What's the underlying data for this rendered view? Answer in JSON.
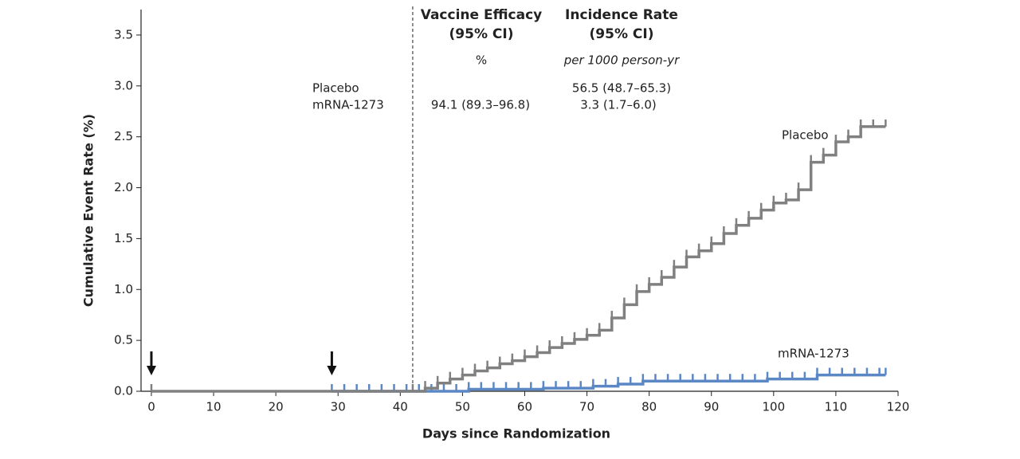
{
  "chart_data": {
    "type": "step",
    "x_label": "Days since Randomization",
    "y_label": "Cumulative Event Rate (%)",
    "xlim": [
      -1.66,
      120
    ],
    "ylim": [
      0,
      3.75
    ],
    "xticks": [
      0,
      10,
      20,
      30,
      40,
      50,
      60,
      70,
      80,
      90,
      100,
      110,
      120
    ],
    "yticks": [
      {
        "value": 0,
        "label": "0.0"
      },
      {
        "value": 0.5,
        "label": "0.5"
      },
      {
        "value": 1,
        "label": "1.0"
      },
      {
        "value": 1.5,
        "label": "1.5"
      },
      {
        "value": 2,
        "label": "2.0"
      },
      {
        "value": 2.5,
        "label": "2.5"
      },
      {
        "value": 3,
        "label": "3.0"
      },
      {
        "value": 3.5,
        "label": "3.5"
      }
    ],
    "reference_line_x": 42,
    "dose_arrows_x": [
      0,
      29
    ],
    "series": [
      {
        "name": "mRNA-1273",
        "color": "#5b87c5",
        "x": [
          29,
          31,
          33,
          35,
          37,
          39,
          41,
          43,
          45,
          47,
          49,
          51,
          53,
          55,
          57,
          59,
          61,
          63,
          65,
          67,
          69,
          71,
          73,
          75,
          77,
          79,
          81,
          83,
          85,
          87,
          89,
          91,
          93,
          95,
          97,
          99,
          101,
          103,
          105,
          107,
          109,
          111,
          113,
          115,
          117,
          118
        ],
        "values": [
          0,
          0,
          0,
          0,
          0,
          0,
          0,
          0,
          0,
          0,
          0,
          0.02,
          0.02,
          0.02,
          0.02,
          0.02,
          0.02,
          0.03,
          0.03,
          0.03,
          0.03,
          0.05,
          0.05,
          0.07,
          0.07,
          0.1,
          0.1,
          0.1,
          0.1,
          0.1,
          0.1,
          0.1,
          0.1,
          0.1,
          0.1,
          0.12,
          0.12,
          0.12,
          0.12,
          0.16,
          0.16,
          0.16,
          0.16,
          0.16,
          0.16,
          0.16
        ]
      },
      {
        "name": "Placebo",
        "color": "#808080",
        "x": [
          0,
          42,
          44,
          46,
          48,
          50,
          52,
          54,
          56,
          58,
          60,
          62,
          64,
          66,
          68,
          70,
          72,
          74,
          76,
          78,
          80,
          82,
          84,
          86,
          88,
          90,
          92,
          94,
          96,
          98,
          100,
          102,
          104,
          106,
          108,
          110,
          112,
          114,
          116,
          118
        ],
        "values": [
          0,
          0,
          0.03,
          0.08,
          0.12,
          0.16,
          0.2,
          0.23,
          0.27,
          0.3,
          0.34,
          0.38,
          0.43,
          0.47,
          0.51,
          0.55,
          0.6,
          0.72,
          0.85,
          0.98,
          1.05,
          1.12,
          1.22,
          1.32,
          1.38,
          1.45,
          1.55,
          1.63,
          1.7,
          1.78,
          1.85,
          1.88,
          1.98,
          2.25,
          2.32,
          2.45,
          2.5,
          2.6,
          2.6,
          2.6
        ]
      }
    ],
    "table": {
      "efficacy_header": [
        "Vaccine Efficacy",
        "(95% CI)"
      ],
      "efficacy_unit": "%",
      "incidence_header": [
        "Incidence Rate",
        "(95% CI)"
      ],
      "incidence_unit": "per 1000 person-yr",
      "rows": [
        {
          "label": "Placebo",
          "incidence": "56.5 (48.7–65.3)"
        },
        {
          "label": "mRNA-1273",
          "efficacy": "94.1 (89.3–96.8)",
          "incidence": "3.3 (1.7–6.0)"
        }
      ]
    }
  }
}
